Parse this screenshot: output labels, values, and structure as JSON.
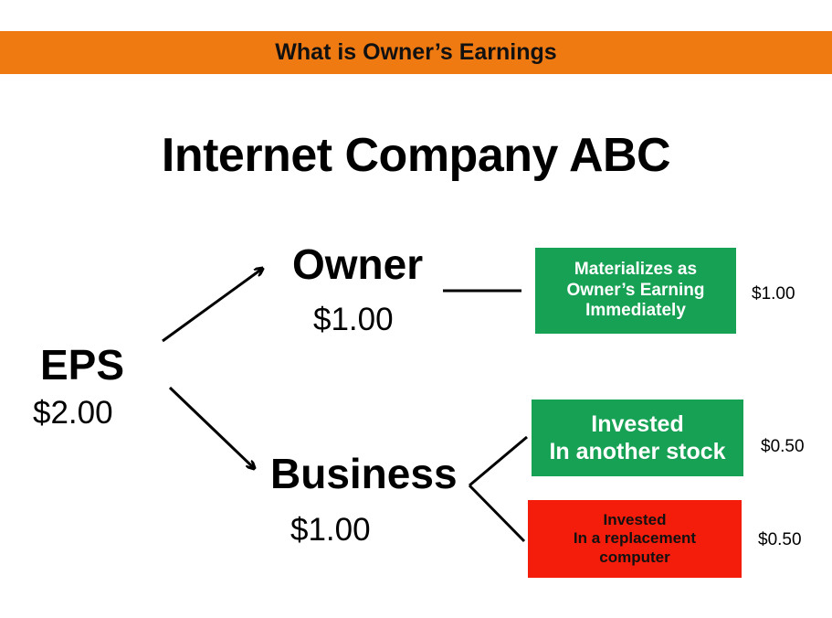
{
  "header": {
    "banner_text": "What is Owner’s Earnings"
  },
  "title": "Internet Company ABC",
  "nodes": {
    "eps": {
      "label": "EPS",
      "amount": "$2.00"
    },
    "owner": {
      "label": "Owner",
      "amount": "$1.00"
    },
    "business": {
      "label": "Business",
      "amount": "$1.00"
    }
  },
  "outcomes": {
    "owner_earnings": {
      "text": "Materializes as\nOwner’s Earning\nImmediately",
      "value": "$1.00",
      "color": "#17a154"
    },
    "another_stock": {
      "text": "Invested\nIn another stock",
      "value": "$0.50",
      "color": "#17a154"
    },
    "replacement_computer": {
      "text": "Invested\nIn a replacement\ncomputer",
      "value": "$0.50",
      "color": "#f41c0a"
    }
  },
  "colors": {
    "banner": "#f07a12",
    "green_box": "#17a154",
    "red_box": "#f41c0a"
  }
}
